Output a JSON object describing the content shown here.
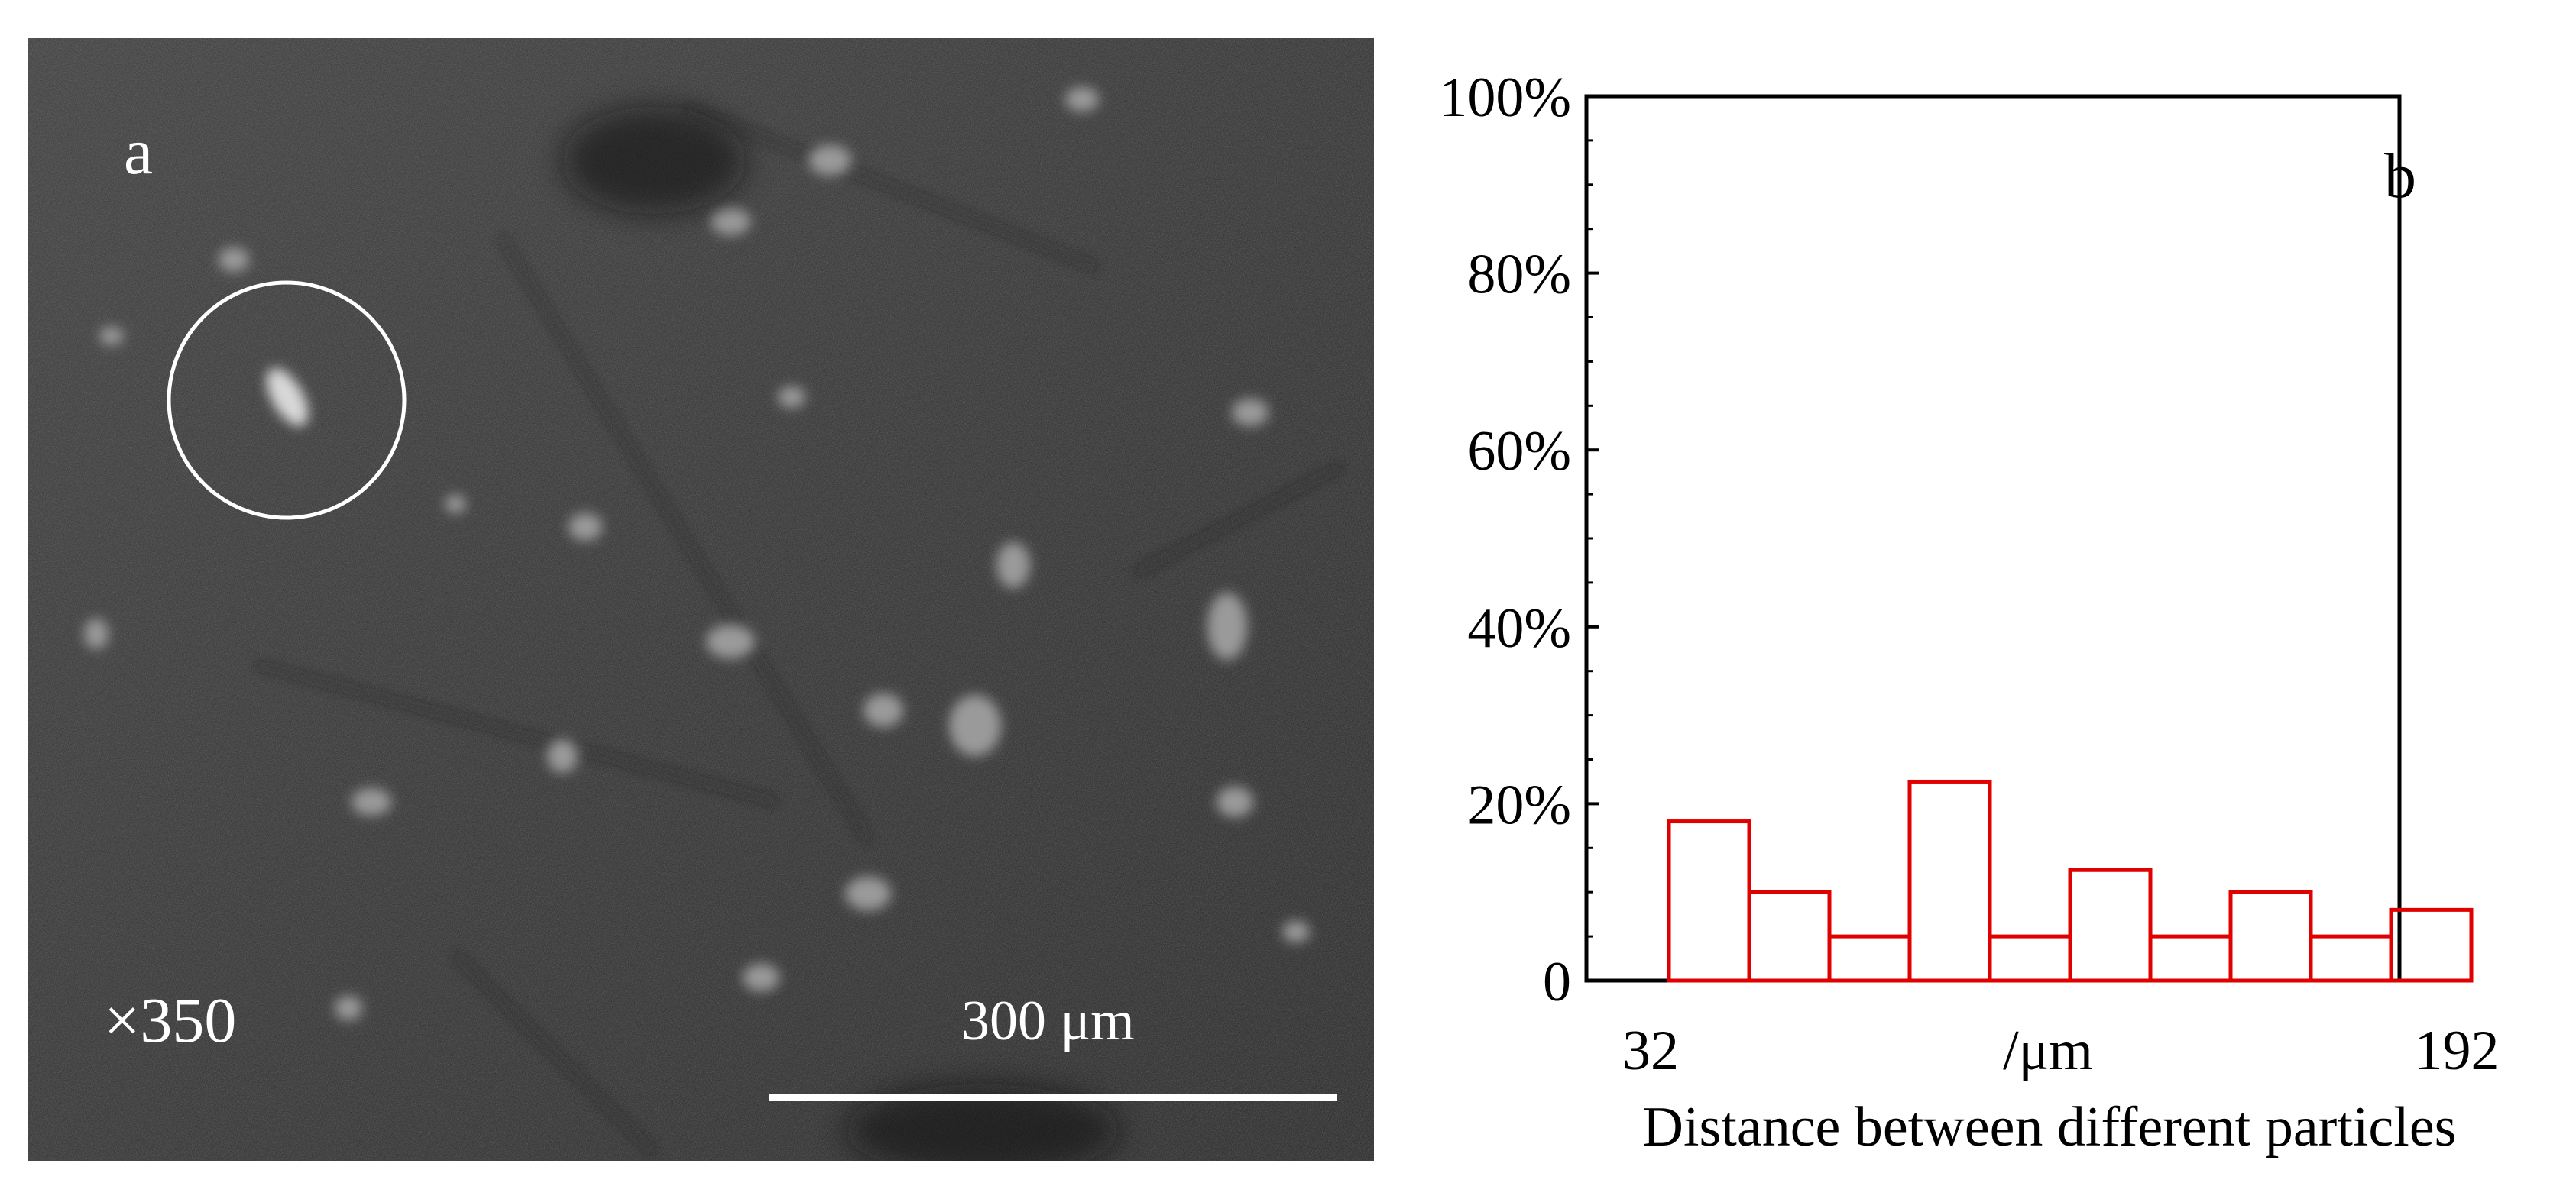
{
  "panel_a": {
    "letter": "a",
    "magnification": "×350",
    "scale_bar_label": "300 μm"
  },
  "panel_b": {
    "letter": "b"
  },
  "chart_data": {
    "type": "bar",
    "title": "",
    "xlabel": "Distance between different particles",
    "x_unit_label": "/μm",
    "x_tick_labels": [
      "32",
      "192"
    ],
    "x_range": [
      32,
      192
    ],
    "y_tick_labels": [
      "0",
      "20%",
      "40%",
      "60%",
      "80%",
      "100%"
    ],
    "ylim": [
      0,
      100
    ],
    "grid": false,
    "legend": "none",
    "bar_color": "#e00000",
    "values": [
      18,
      10,
      5,
      22.5,
      5,
      12.5,
      5,
      10,
      5,
      8
    ]
  }
}
